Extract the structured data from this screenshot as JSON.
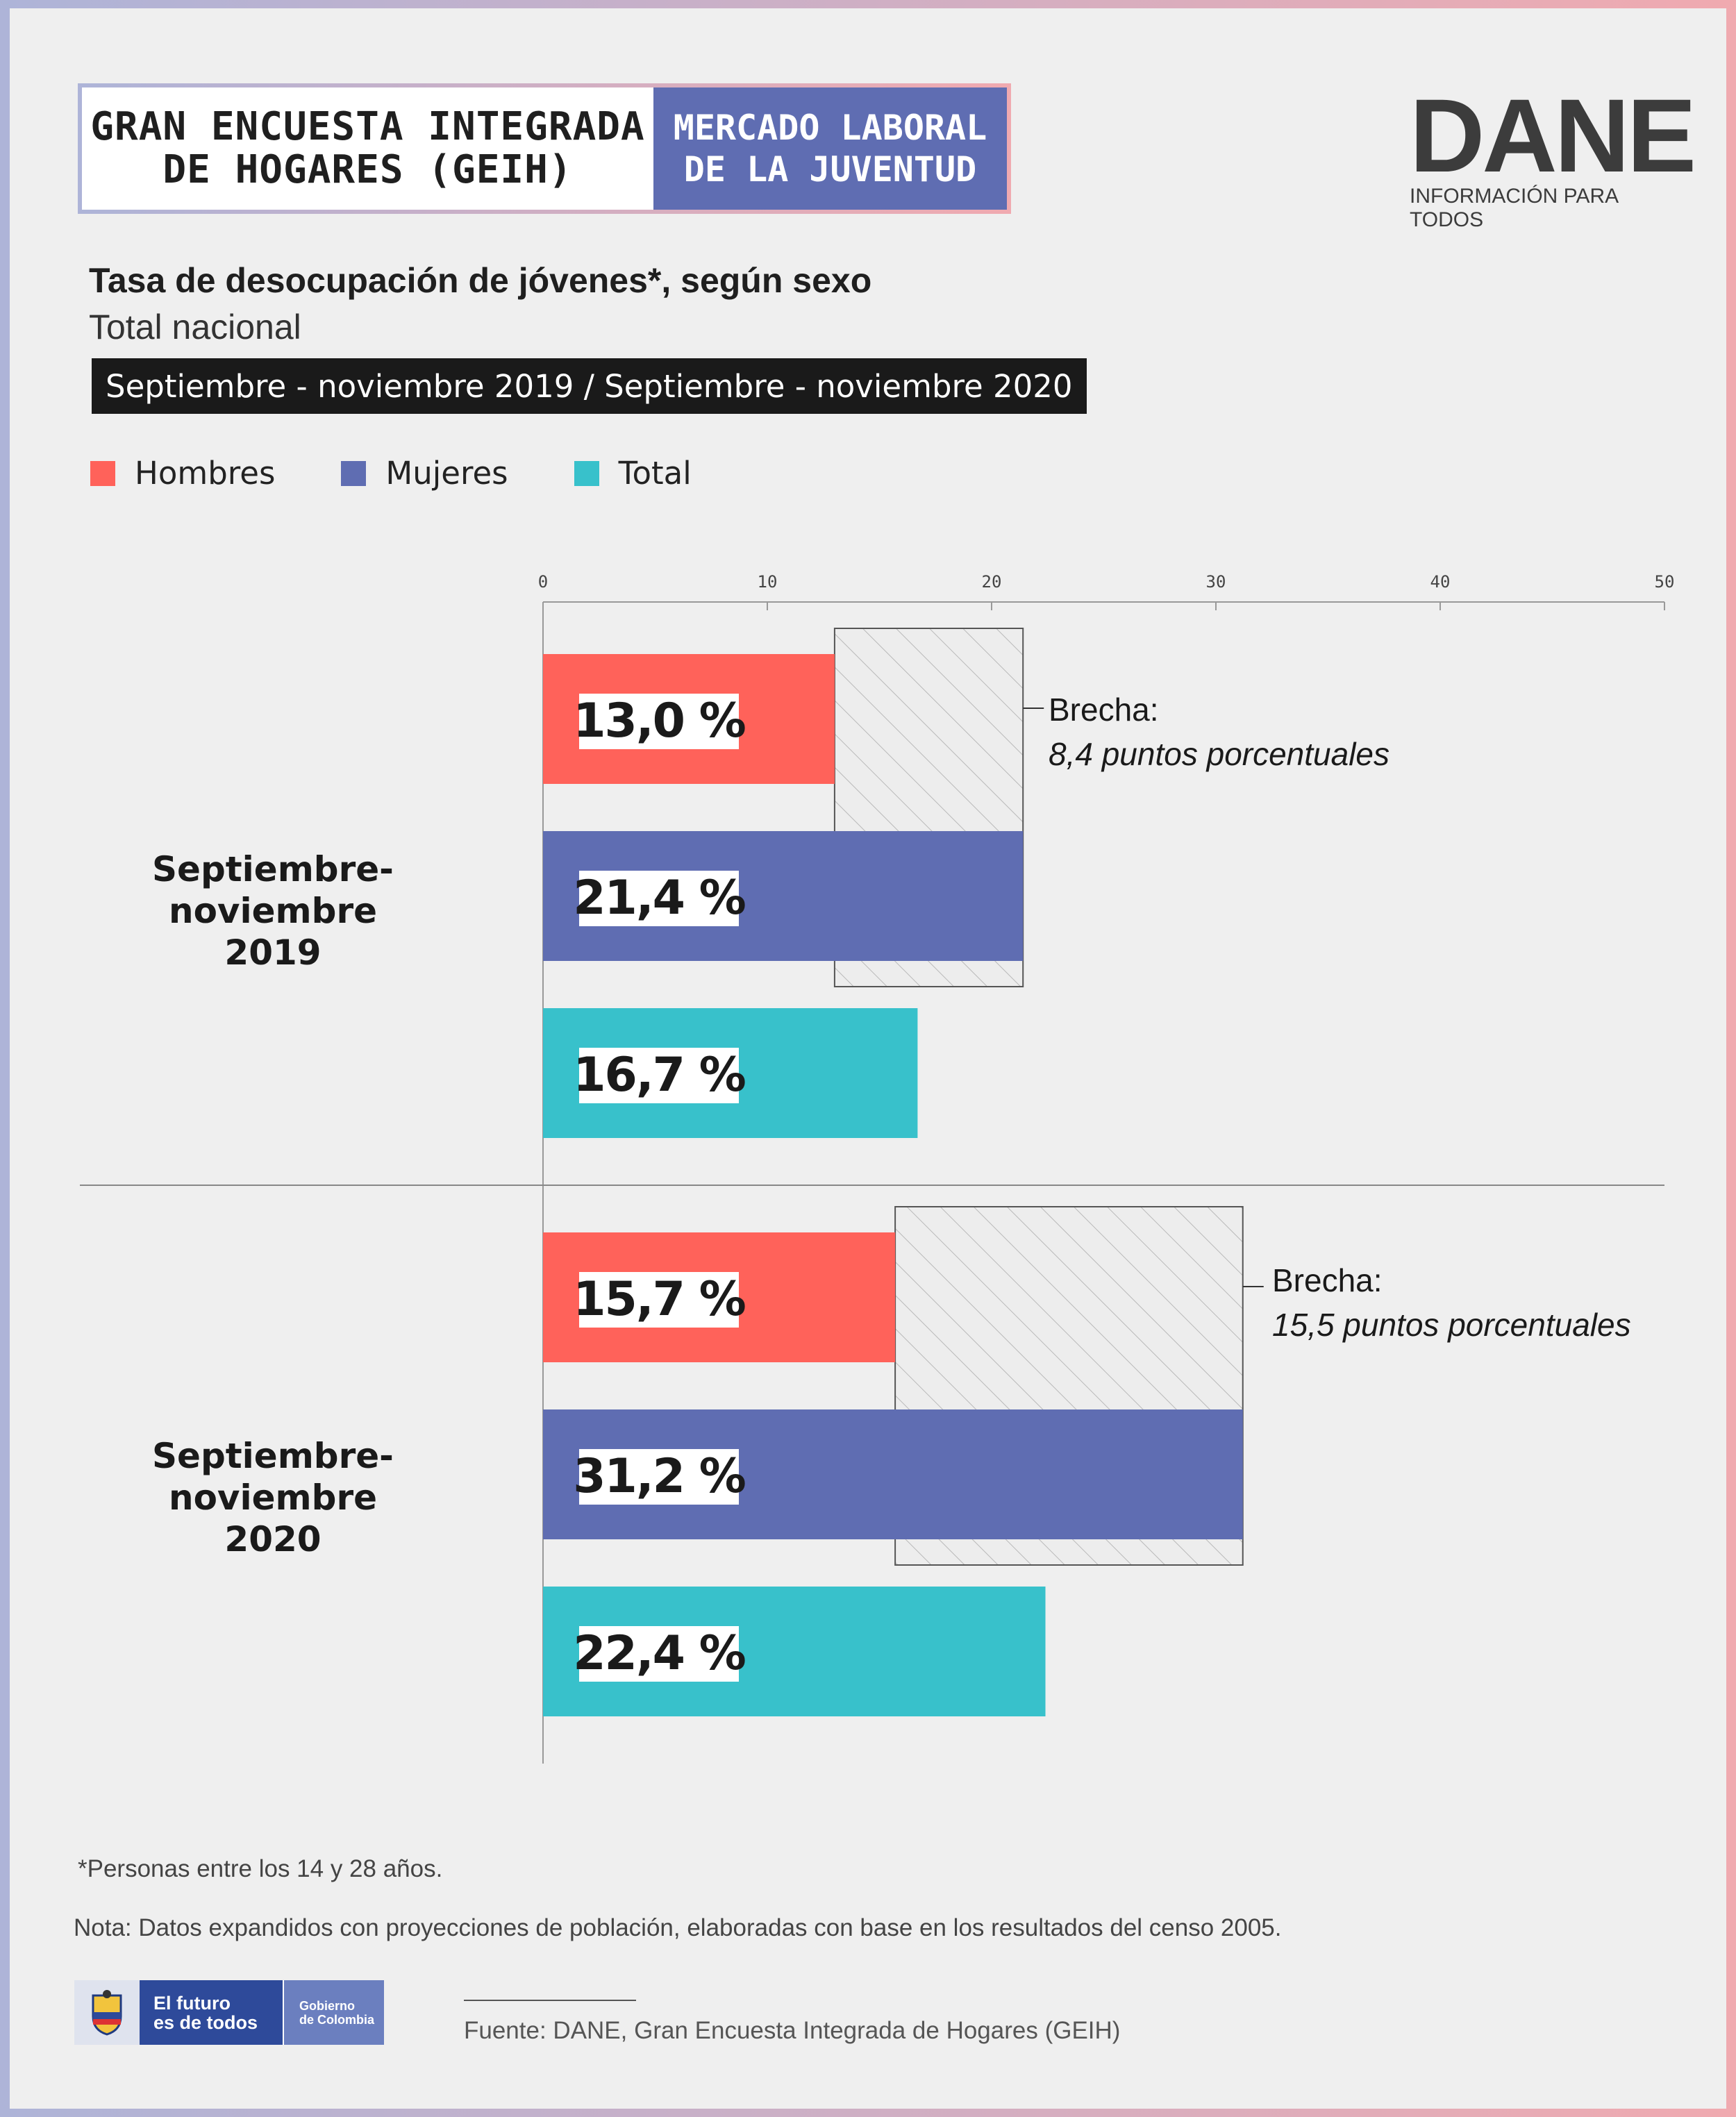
{
  "header": {
    "left_line1": "GRAN ENCUESTA INTEGRADA",
    "left_line2": "DE HOGARES (GEIH)",
    "right_line1": "MERCADO LABORAL",
    "right_line2": "DE LA JUVENTUD"
  },
  "logo": {
    "main": "DANE",
    "sub": "INFORMACIÓN PARA TODOS"
  },
  "title": "Tasa de desocupación de jóvenes*, según sexo",
  "subtitle": "Total nacional",
  "period": "Septiembre - noviembre 2019 / Septiembre - noviembre 2020",
  "legend": [
    {
      "label": "Hombres",
      "color": "#ff625a"
    },
    {
      "label": "Mujeres",
      "color": "#5f6db2"
    },
    {
      "label": "Total",
      "color": "#38c1cb"
    }
  ],
  "groups": [
    {
      "line1": "Septiembre-noviembre",
      "line2": "2019",
      "gap_title": "Brecha:",
      "gap_value": "8,4  puntos porcentuales"
    },
    {
      "line1": "Septiembre-noviembre",
      "line2": "2020",
      "gap_title": "Brecha:",
      "gap_value": "15,5 puntos porcentuales"
    }
  ],
  "chart_data": {
    "type": "bar",
    "orientation": "horizontal",
    "title": "Tasa de desocupación de jóvenes*, según sexo",
    "categories": [
      "Septiembre-noviembre 2019",
      "Septiembre-noviembre 2020"
    ],
    "series": [
      {
        "name": "Hombres",
        "values": [
          13.0,
          15.7
        ],
        "labels": [
          "13,0 %",
          "15,7 %"
        ],
        "color": "#ff625a"
      },
      {
        "name": "Mujeres",
        "values": [
          21.4,
          31.2
        ],
        "labels": [
          "21,4 %",
          "31,2 %"
        ],
        "color": "#5f6db2"
      },
      {
        "name": "Total",
        "values": [
          16.7,
          22.4
        ],
        "labels": [
          "16,7 %",
          "22,4 %"
        ],
        "color": "#38c1cb"
      }
    ],
    "xlim": [
      0,
      50
    ],
    "xticks": [
      0,
      10,
      20,
      30,
      40,
      50
    ],
    "gaps": [
      8.4,
      15.5
    ],
    "grid": false,
    "legend_position": "top-left"
  },
  "footer": {
    "note1": "*Personas entre los 14 y 28 años.",
    "note2": "Nota: Datos expandidos con proyecciones de población, elaboradas con base en los resultados del censo 2005.",
    "source": "Fuente: DANE, Gran Encuesta Integrada de Hogares (GEIH)",
    "gov_line1": "El futuro",
    "gov_line2": "es de todos",
    "gov_right1": "Gobierno",
    "gov_right2": "de Colombia"
  }
}
